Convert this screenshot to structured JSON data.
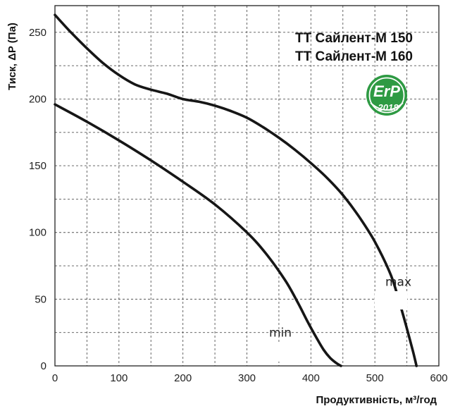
{
  "chart_data": {
    "type": "line",
    "xlabel": "Продуктивність, м³/год",
    "ylabel": "Тиск, ΔP (Па)",
    "xlim": [
      0,
      600
    ],
    "ylim": [
      0,
      270
    ],
    "x_ticks": [
      "0",
      "100",
      "200",
      "300",
      "400",
      "500",
      "600"
    ],
    "y_ticks": [
      "0",
      "50",
      "100",
      "150",
      "200",
      "250"
    ],
    "x_tick_values": [
      0,
      100,
      200,
      300,
      400,
      500,
      600
    ],
    "y_tick_values": [
      0,
      50,
      100,
      150,
      200,
      250
    ],
    "x_minor_step": 50,
    "y_minor_step": 25,
    "grid": true,
    "series": [
      {
        "name": "max",
        "x": [
          0,
          25,
          50,
          75,
          100,
          125,
          150,
          175,
          200,
          225,
          250,
          275,
          300,
          325,
          350,
          375,
          400,
          425,
          450,
          475,
          500,
          525,
          540,
          550,
          560,
          565
        ],
        "y": [
          263,
          250,
          238,
          227,
          218,
          211,
          207,
          204,
          200,
          198,
          195,
          191,
          186,
          179,
          171,
          162,
          152,
          141,
          128,
          112,
          93,
          68,
          45,
          28,
          10,
          0
        ]
      },
      {
        "name": "min",
        "x": [
          0,
          50,
          100,
          150,
          200,
          250,
          300,
          330,
          360,
          380,
          395,
          410,
          420,
          430,
          440,
          447
        ],
        "y": [
          196,
          183,
          169,
          154,
          138,
          121,
          100,
          84,
          64,
          47,
          33,
          20,
          12,
          6,
          2,
          0
        ]
      }
    ],
    "annotations": {
      "models": [
        "ТТ Сайлент-М 150",
        "ТТ Сайлент-М 160"
      ],
      "badge": {
        "line1": "ErP",
        "line2": "2018"
      }
    }
  }
}
